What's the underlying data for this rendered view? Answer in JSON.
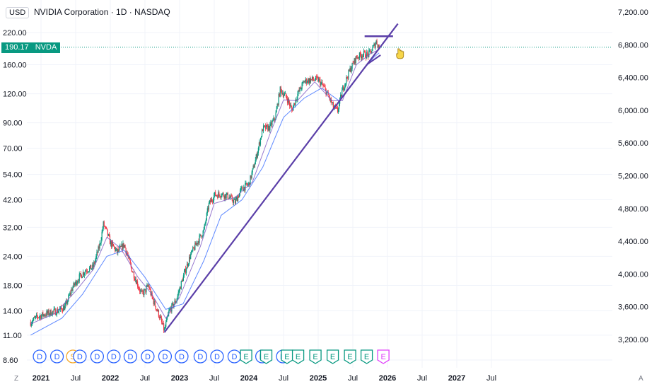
{
  "header": {
    "currency": "USD",
    "title": "NVIDIA Corporation · 1D · NASDAQ",
    "last_price": "190.17",
    "ticker": "NVDA",
    "corner_left": "Z",
    "corner_right": "A"
  },
  "colors": {
    "up": "#089981",
    "down": "#f23645",
    "trendline": "#5b3fa8",
    "ma_fast": "#7e57c2",
    "ma_slow": "#2962ff",
    "dividend": "#2962ff",
    "split": "#f5a623",
    "earnings": "#089981",
    "earnings_future": "#e040fb",
    "grid": "#f0f3fa"
  },
  "chart_data": {
    "type": "candlestick",
    "title": "NVIDIA Corporation · 1D · NASDAQ",
    "scale": "log",
    "left_axis_ticks": [
      "220.00",
      "160.00",
      "120.00",
      "90.00",
      "70.00",
      "54.00",
      "42.00",
      "32.00",
      "24.00",
      "18.00",
      "14.00",
      "11.00",
      "8.60"
    ],
    "left_axis_values": [
      220,
      160,
      120,
      90,
      70,
      54,
      42,
      32,
      24,
      18,
      14,
      11,
      8.6
    ],
    "right_axis_ticks": [
      "7,200.00",
      "6,800.00",
      "6,400.00",
      "6,000.00",
      "5,600.00",
      "5,200.00",
      "4,800.00",
      "4,400.00",
      "4,000.00",
      "3,600.00",
      "3,200.00"
    ],
    "x_ticks": [
      "2021",
      "Jul",
      "2022",
      "Jul",
      "2023",
      "Jul",
      "2024",
      "Jul",
      "2025",
      "Jul",
      "2026",
      "Jul",
      "2027",
      "Jul"
    ],
    "x_tick_dates": [
      2021.0,
      2021.5,
      2022.0,
      2022.5,
      2023.0,
      2023.5,
      2024.0,
      2024.5,
      2025.0,
      2025.5,
      2026.0,
      2026.5,
      2027.0,
      2027.5
    ],
    "price_path": [
      [
        2020.85,
        12.5
      ],
      [
        2020.95,
        13.2
      ],
      [
        2021.05,
        13.5
      ],
      [
        2021.15,
        13.8
      ],
      [
        2021.25,
        14.0
      ],
      [
        2021.35,
        14.6
      ],
      [
        2021.45,
        17.5
      ],
      [
        2021.55,
        19.5
      ],
      [
        2021.65,
        21.0
      ],
      [
        2021.75,
        21.5
      ],
      [
        2021.85,
        27.0
      ],
      [
        2021.9,
        33.0
      ],
      [
        2021.95,
        30.5
      ],
      [
        2022.0,
        27.5
      ],
      [
        2022.1,
        25.0
      ],
      [
        2022.2,
        27.0
      ],
      [
        2022.3,
        21.5
      ],
      [
        2022.4,
        18.0
      ],
      [
        2022.45,
        16.5
      ],
      [
        2022.5,
        17.0
      ],
      [
        2022.55,
        18.0
      ],
      [
        2022.6,
        16.0
      ],
      [
        2022.7,
        13.5
      ],
      [
        2022.78,
        11.5
      ],
      [
        2022.85,
        14.0
      ],
      [
        2022.95,
        15.5
      ],
      [
        2023.05,
        19.5
      ],
      [
        2023.15,
        24.0
      ],
      [
        2023.25,
        27.5
      ],
      [
        2023.35,
        31.0
      ],
      [
        2023.42,
        40.0
      ],
      [
        2023.5,
        44.0
      ],
      [
        2023.6,
        44.5
      ],
      [
        2023.7,
        43.5
      ],
      [
        2023.8,
        41.0
      ],
      [
        2023.9,
        47.0
      ],
      [
        2024.0,
        49.0
      ],
      [
        2024.1,
        63.0
      ],
      [
        2024.2,
        85.0
      ],
      [
        2024.3,
        86.0
      ],
      [
        2024.38,
        95.0
      ],
      [
        2024.45,
        125.0
      ],
      [
        2024.55,
        115.0
      ],
      [
        2024.62,
        102.0
      ],
      [
        2024.7,
        119.0
      ],
      [
        2024.8,
        136.0
      ],
      [
        2024.9,
        138.0
      ],
      [
        2025.0,
        138.0
      ],
      [
        2025.08,
        128.0
      ],
      [
        2025.15,
        117.0
      ],
      [
        2025.22,
        105.0
      ],
      [
        2025.28,
        101.0
      ],
      [
        2025.35,
        125.0
      ],
      [
        2025.45,
        150.0
      ],
      [
        2025.55,
        172.0
      ],
      [
        2025.65,
        178.0
      ],
      [
        2025.72,
        176.0
      ],
      [
        2025.78,
        186.0
      ],
      [
        2025.84,
        202.0
      ],
      [
        2025.88,
        190.17
      ]
    ],
    "ma_fast_path": [
      [
        2020.85,
        12.3
      ],
      [
        2021.2,
        13.6
      ],
      [
        2021.5,
        17.0
      ],
      [
        2021.75,
        21.0
      ],
      [
        2021.95,
        29.0
      ],
      [
        2022.15,
        26.0
      ],
      [
        2022.4,
        19.5
      ],
      [
        2022.6,
        16.5
      ],
      [
        2022.8,
        13.0
      ],
      [
        2023.0,
        16.0
      ],
      [
        2023.3,
        26.5
      ],
      [
        2023.5,
        40.5
      ],
      [
        2023.8,
        43.0
      ],
      [
        2024.05,
        50.0
      ],
      [
        2024.3,
        80.0
      ],
      [
        2024.5,
        113.0
      ],
      [
        2024.7,
        112.0
      ],
      [
        2024.95,
        135.0
      ],
      [
        2025.2,
        112.0
      ],
      [
        2025.35,
        112.0
      ],
      [
        2025.55,
        160.0
      ],
      [
        2025.75,
        178.0
      ],
      [
        2025.88,
        186.0
      ]
    ],
    "ma_slow_path": [
      [
        2020.85,
        11.0
      ],
      [
        2021.3,
        13.0
      ],
      [
        2021.6,
        16.5
      ],
      [
        2021.95,
        24.0
      ],
      [
        2022.2,
        25.5
      ],
      [
        2022.5,
        19.5
      ],
      [
        2022.8,
        14.2
      ],
      [
        2023.05,
        15.0
      ],
      [
        2023.35,
        23.0
      ],
      [
        2023.6,
        36.0
      ],
      [
        2023.9,
        42.0
      ],
      [
        2024.2,
        58.0
      ],
      [
        2024.5,
        95.0
      ],
      [
        2024.8,
        115.0
      ],
      [
        2025.05,
        127.0
      ],
      [
        2025.3,
        112.0
      ],
      [
        2025.55,
        140.0
      ],
      [
        2025.8,
        172.0
      ],
      [
        2025.88,
        180.0
      ]
    ],
    "annotations": {
      "resistance_line": {
        "x_start": 2025.67,
        "x_end": 2026.08,
        "y": 212
      },
      "support_trendline": {
        "x_start": 2022.78,
        "y_start": 11.3,
        "x_end": 2026.15,
        "y_end": 240
      },
      "short_trendline": {
        "x_start": 2025.7,
        "y_start": 160,
        "x_end": 2025.9,
        "y_end": 176
      }
    },
    "events": [
      {
        "date": 2020.98,
        "label": "D",
        "kind": "dividend"
      },
      {
        "date": 2021.23,
        "label": "D",
        "kind": "dividend"
      },
      {
        "date": 2021.46,
        "label": "S",
        "kind": "split"
      },
      {
        "date": 2021.56,
        "label": "D",
        "kind": "dividend"
      },
      {
        "date": 2021.81,
        "label": "D",
        "kind": "dividend"
      },
      {
        "date": 2022.05,
        "label": "D",
        "kind": "dividend"
      },
      {
        "date": 2022.29,
        "label": "D",
        "kind": "dividend"
      },
      {
        "date": 2022.54,
        "label": "D",
        "kind": "dividend"
      },
      {
        "date": 2022.79,
        "label": "D",
        "kind": "dividend"
      },
      {
        "date": 2023.03,
        "label": "D",
        "kind": "dividend"
      },
      {
        "date": 2023.3,
        "label": "D",
        "kind": "dividend"
      },
      {
        "date": 2023.54,
        "label": "D",
        "kind": "dividend"
      },
      {
        "date": 2023.79,
        "label": "D",
        "kind": "dividend"
      },
      {
        "date": 2023.96,
        "label": "E",
        "kind": "earnings"
      },
      {
        "date": 2024.19,
        "label": "D",
        "kind": "dividend"
      },
      {
        "date": 2024.25,
        "label": "E",
        "kind": "earnings"
      },
      {
        "date": 2024.49,
        "label": "D",
        "kind": "dividend"
      },
      {
        "date": 2024.55,
        "label": "E",
        "kind": "earnings"
      },
      {
        "date": 2024.71,
        "label": "E",
        "kind": "earnings"
      },
      {
        "date": 2024.96,
        "label": "E",
        "kind": "earnings"
      },
      {
        "date": 2025.21,
        "label": "E",
        "kind": "earnings"
      },
      {
        "date": 2025.46,
        "label": "E",
        "kind": "earnings"
      },
      {
        "date": 2025.7,
        "label": "E",
        "kind": "earnings"
      },
      {
        "date": 2025.94,
        "label": "E",
        "kind": "earnings_future"
      }
    ],
    "grid": true
  }
}
